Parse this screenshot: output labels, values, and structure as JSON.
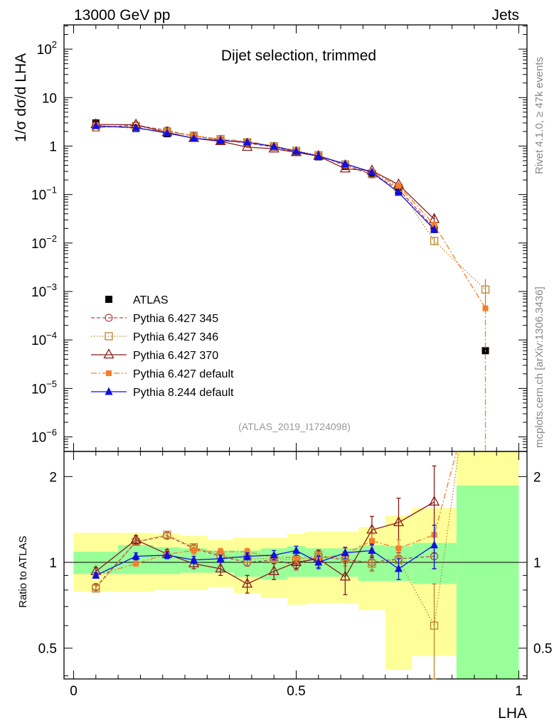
{
  "chart_data": {
    "type": "line",
    "header_left": "13000 GeV pp",
    "header_right": "Jets",
    "title": "Dijet selection, trimmed",
    "analysis_id": "(ATLAS_2019_I1724098)",
    "side_rivet": "Rivet 4.1.0, ≥ 47k events",
    "side_mcplots": "mcplots.cern.ch [arXiv:1306.3436]",
    "xlabel": "LHA",
    "ylabel_main": "1/σ dσ/d LHA",
    "ylabel_ratio": "Ratio to ATLAS",
    "xlim": [
      0,
      1
    ],
    "ylim_main_log10": [
      -6.3,
      2.5
    ],
    "ylim_ratio": [
      0.39,
      2.45
    ],
    "x_ticks": [
      0,
      0.5,
      1
    ],
    "x_tick_labels": [
      "0",
      "0.5",
      "1"
    ],
    "main_y_ticks": [
      {
        "v": 100,
        "base": "10",
        "exp": "2"
      },
      {
        "v": 10,
        "base": "10",
        "exp": ""
      },
      {
        "v": 1,
        "base": "1",
        "exp": ""
      },
      {
        "v": 0.1,
        "base": "10",
        "exp": "−1"
      },
      {
        "v": 0.01,
        "base": "10",
        "exp": "−2"
      },
      {
        "v": 0.001,
        "base": "10",
        "exp": "−3"
      },
      {
        "v": 0.0001,
        "base": "10",
        "exp": "−4"
      },
      {
        "v": 1e-05,
        "base": "10",
        "exp": "−5"
      },
      {
        "v": 1e-06,
        "base": "10",
        "exp": "−6"
      }
    ],
    "ratio_y_ticks": [
      0.5,
      1,
      2
    ],
    "ratio_y_tick_labels": [
      "0.5",
      "1",
      "2"
    ],
    "bin_edges": [
      0,
      0.1,
      0.18,
      0.24,
      0.3,
      0.36,
      0.42,
      0.48,
      0.52,
      0.58,
      0.64,
      0.7,
      0.76,
      0.86,
      1.0
    ],
    "band_inner": [
      [
        0.91,
        1.09
      ],
      [
        0.91,
        1.15
      ],
      [
        0.91,
        1.13
      ],
      [
        0.92,
        1.12
      ],
      [
        0.92,
        1.1
      ],
      [
        0.89,
        1.1
      ],
      [
        0.87,
        1.12
      ],
      [
        0.89,
        1.14
      ],
      [
        0.89,
        1.12
      ],
      [
        0.89,
        1.12
      ],
      [
        0.86,
        1.15
      ],
      [
        0.86,
        1.14
      ],
      [
        0.84,
        1.17
      ],
      [
        0.39,
        1.86
      ]
    ],
    "band_outer": [
      [
        0.79,
        1.27
      ],
      [
        0.79,
        1.27
      ],
      [
        0.8,
        1.26
      ],
      [
        0.8,
        1.24
      ],
      [
        0.82,
        1.2
      ],
      [
        0.78,
        1.22
      ],
      [
        0.75,
        1.22
      ],
      [
        0.71,
        1.26
      ],
      [
        0.72,
        1.28
      ],
      [
        0.72,
        1.28
      ],
      [
        0.68,
        1.33
      ],
      [
        0.42,
        1.46
      ],
      [
        0.47,
        1.55
      ],
      [
        0.39,
        2.45
      ]
    ],
    "series": [
      {
        "name": "ATLAS",
        "color": "#000000",
        "marker": "square-filled",
        "dash": "none",
        "x": [
          0.05,
          0.14,
          0.21,
          0.27,
          0.33,
          0.39,
          0.45,
          0.5,
          0.55,
          0.61,
          0.67,
          0.73,
          0.81,
          0.925
        ],
        "y": [
          3.0,
          2.3,
          1.8,
          1.45,
          1.3,
          1.15,
          0.95,
          0.75,
          0.6,
          0.38,
          0.26,
          0.12,
          0.019,
          6e-05
        ],
        "yerr": [
          0.15,
          0.1,
          0.07,
          0.05,
          0.05,
          0.05,
          0.04,
          0.03,
          0.03,
          0.02,
          0.02,
          0.01,
          0.003,
          1e-05
        ],
        "ratio": [
          1,
          1,
          1,
          1,
          1,
          1,
          1,
          1,
          1,
          1,
          1,
          1,
          1
        ]
      },
      {
        "name": "Pythia 6.427 345",
        "color": "#b5474b",
        "marker": "circle-open",
        "dash": "5,3",
        "x": [
          0.05,
          0.14,
          0.21,
          0.27,
          0.33,
          0.39,
          0.45,
          0.5,
          0.55,
          0.61,
          0.67,
          0.73,
          0.81
        ],
        "y": [
          2.4,
          2.7,
          2.1,
          1.6,
          1.35,
          1.15,
          0.96,
          0.75,
          0.63,
          0.4,
          0.26,
          0.13,
          0.02
        ],
        "ratio": [
          0.82,
          1.18,
          1.24,
          1.12,
          1.05,
          1.0,
          1.02,
          0.98,
          1.05,
          1.02,
          1.0,
          1.03,
          1.05
        ],
        "ratio_err": [
          0.02,
          0.03,
          0.03,
          0.03,
          0.03,
          0.03,
          0.03,
          0.04,
          0.05,
          0.05,
          0.06,
          0.08,
          0.1
        ]
      },
      {
        "name": "Pythia 6.427 346",
        "color": "#b8862b",
        "marker": "square-open",
        "dash": "1.5,2.5",
        "x": [
          0.05,
          0.14,
          0.21,
          0.27,
          0.33,
          0.39,
          0.45,
          0.5,
          0.55,
          0.61,
          0.67,
          0.73,
          0.81,
          0.925
        ],
        "y": [
          2.4,
          2.6,
          2.0,
          1.65,
          1.4,
          1.2,
          1.0,
          0.8,
          0.65,
          0.42,
          0.27,
          0.14,
          0.011,
          0.0011
        ],
        "yerr": [
          0,
          0,
          0,
          0,
          0,
          0,
          0,
          0,
          0,
          0,
          0,
          0,
          0.002,
          0.0007
        ],
        "ratio": [
          0.81,
          1.18,
          1.25,
          1.13,
          1.06,
          1.03,
          1.03,
          1.02,
          1.06,
          1.03,
          0.99,
          1.02,
          0.6
        ],
        "ratio_err": [
          0.02,
          0.03,
          0.03,
          0.03,
          0.03,
          0.03,
          0.04,
          0.04,
          0.05,
          0.06,
          0.06,
          0.08,
          0.24
        ],
        "ratio_tail_x": 0.865
      },
      {
        "name": "Pythia 6.427 370",
        "color": "#8b1a1a",
        "marker": "triangle-open",
        "dash": "none",
        "x": [
          0.05,
          0.14,
          0.21,
          0.27,
          0.33,
          0.39,
          0.45,
          0.5,
          0.55,
          0.61,
          0.67,
          0.73,
          0.81
        ],
        "y": [
          2.8,
          2.75,
          1.9,
          1.45,
          1.25,
          0.95,
          0.88,
          0.74,
          0.62,
          0.34,
          0.31,
          0.16,
          0.031
        ],
        "yerr": [
          0,
          0,
          0,
          0,
          0,
          0,
          0,
          0,
          0,
          0,
          0,
          0.02,
          0.01
        ],
        "ratio": [
          0.93,
          1.2,
          1.07,
          0.99,
          0.95,
          0.84,
          0.93,
          1.0,
          1.03,
          0.89,
          1.3,
          1.38,
          1.63
        ],
        "ratio_err": [
          0.03,
          0.04,
          0.04,
          0.04,
          0.05,
          0.06,
          0.06,
          0.05,
          0.07,
          0.12,
          0.15,
          0.3,
          0.55
        ]
      },
      {
        "name": "Pythia 6.427 default",
        "color": "#f47e2b",
        "marker": "square-filled-small",
        "dash": "8,3,2,3",
        "x": [
          0.05,
          0.14,
          0.21,
          0.27,
          0.33,
          0.39,
          0.45,
          0.5,
          0.55,
          0.61,
          0.67,
          0.73,
          0.81,
          0.925
        ],
        "y": [
          2.7,
          2.3,
          2.0,
          1.6,
          1.4,
          1.25,
          1.0,
          0.8,
          0.62,
          0.42,
          0.29,
          0.15,
          0.024,
          0.00045
        ],
        "yerr": [
          0,
          0,
          0,
          0,
          0,
          0,
          0,
          0,
          0,
          0,
          0,
          0,
          0,
          5e-05
        ],
        "ratio": [
          0.9,
          0.99,
          1.07,
          1.1,
          1.09,
          1.09,
          1.04,
          1.04,
          1.03,
          1.07,
          1.19,
          1.12,
          1.25
        ],
        "ratio_err": [
          0.02,
          0.02,
          0.03,
          0.03,
          0.03,
          0.03,
          0.03,
          0.04,
          0.05,
          0.05,
          0.07,
          0.08,
          0.1
        ],
        "ratio_tail_x": 0.86
      },
      {
        "name": "Pythia 8.244 default",
        "color": "#1010e0",
        "marker": "triangle-filled",
        "dash": "none",
        "x": [
          0.05,
          0.14,
          0.21,
          0.27,
          0.33,
          0.39,
          0.45,
          0.5,
          0.55,
          0.61,
          0.67,
          0.73,
          0.81
        ],
        "y": [
          2.6,
          2.4,
          1.85,
          1.45,
          1.3,
          1.2,
          0.98,
          0.78,
          0.62,
          0.43,
          0.29,
          0.11,
          0.019
        ],
        "yerr": [
          0,
          0,
          0,
          0,
          0,
          0,
          0,
          0,
          0,
          0,
          0,
          0,
          0.003
        ],
        "ratio": [
          0.9,
          1.05,
          1.06,
          1.02,
          1.03,
          1.05,
          1.06,
          1.1,
          1.0,
          1.08,
          1.1,
          0.95,
          1.15
        ],
        "ratio_err": [
          0.02,
          0.03,
          0.03,
          0.03,
          0.03,
          0.03,
          0.04,
          0.04,
          0.05,
          0.05,
          0.06,
          0.08,
          0.2
        ]
      }
    ]
  }
}
